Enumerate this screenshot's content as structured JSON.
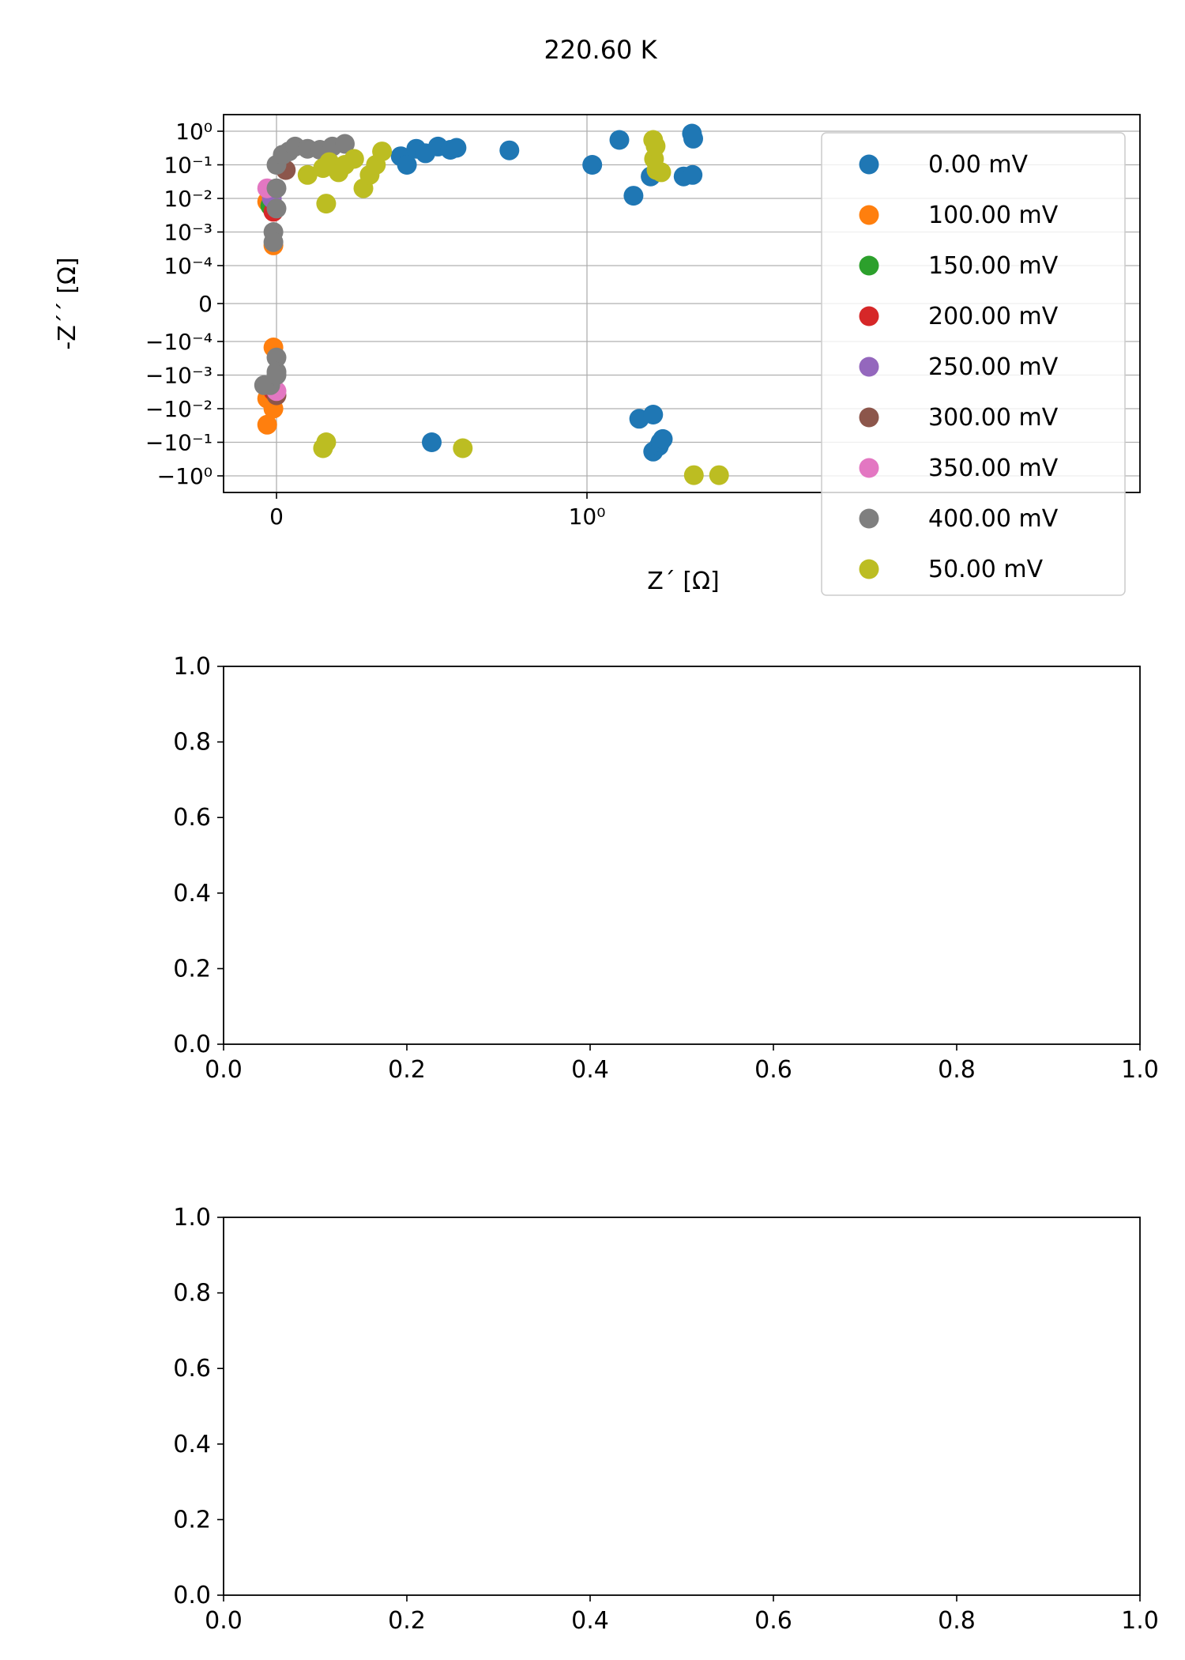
{
  "figure": {
    "suptitle": "220.60 K"
  },
  "chart_data": [
    {
      "type": "scatter",
      "xlabel": "Z´ [Ω]",
      "ylabel": "-Z´´ [Ω]",
      "x_scale": "symlog",
      "y_scale": "symlog",
      "grid": true,
      "legend_position": "right",
      "x_ticks": [
        {
          "value": 0,
          "label": "0"
        },
        {
          "value": 1,
          "label": "10⁰"
        }
      ],
      "y_ticks": [
        {
          "value": 1,
          "label": "10⁰"
        },
        {
          "value": 0.1,
          "label": "10⁻¹"
        },
        {
          "value": 0.01,
          "label": "10⁻²"
        },
        {
          "value": 0.001,
          "label": "10⁻³"
        },
        {
          "value": 0.0001,
          "label": "10⁻⁴"
        },
        {
          "value": 0,
          "label": "0"
        },
        {
          "value": -0.0001,
          "label": "−10⁻⁴"
        },
        {
          "value": -0.001,
          "label": "−10⁻³"
        },
        {
          "value": -0.01,
          "label": "−10⁻²"
        },
        {
          "value": -0.1,
          "label": "−10⁻¹"
        },
        {
          "value": -1,
          "label": "−10⁰"
        }
      ],
      "series": [
        {
          "name": "0.00 mV",
          "color": "#1f77b4",
          "points": [
            [
              0.4,
              0.18
            ],
            [
              0.42,
              0.1
            ],
            [
              0.45,
              0.3
            ],
            [
              0.48,
              0.22
            ],
            [
              0.52,
              0.35
            ],
            [
              0.56,
              0.28
            ],
            [
              0.58,
              0.32
            ],
            [
              0.75,
              0.27
            ],
            [
              1.04,
              0.1
            ],
            [
              1.27,
              0.55
            ],
            [
              1.41,
              0.012
            ],
            [
              1.6,
              0.045
            ],
            [
              2.04,
              0.045
            ],
            [
              2.17,
              0.85
            ],
            [
              2.19,
              0.6
            ],
            [
              2.18,
              0.05
            ],
            [
              0.5,
              -0.1
            ],
            [
              1.47,
              -0.02
            ],
            [
              1.63,
              -0.015
            ],
            [
              1.63,
              -0.19
            ],
            [
              1.7,
              -0.13
            ],
            [
              1.72,
              -0.1
            ],
            [
              1.75,
              -0.08
            ]
          ]
        },
        {
          "name": "100.00 mV",
          "color": "#ff7f0e",
          "points": [
            [
              -0.03,
              0.008
            ],
            [
              -0.01,
              0.0004
            ],
            [
              -0.01,
              -0.00015
            ],
            [
              -0.03,
              -0.005
            ],
            [
              -0.03,
              -0.03
            ],
            [
              -0.01,
              -0.01
            ],
            [
              -0.02,
              -0.002
            ]
          ]
        },
        {
          "name": "150.00 mV",
          "color": "#2ca02c",
          "points": [
            [
              -0.02,
              0.006
            ],
            [
              -0.02,
              -0.002
            ]
          ]
        },
        {
          "name": "200.00 mV",
          "color": "#d62728",
          "points": [
            [
              -0.01,
              0.004
            ],
            [
              -0.01,
              -0.003
            ]
          ]
        },
        {
          "name": "250.00 mV",
          "color": "#9467bd",
          "points": [
            [
              -0.015,
              0.01
            ],
            [
              -0.015,
              -0.002
            ]
          ]
        },
        {
          "name": "300.00 mV",
          "color": "#8c564b",
          "points": [
            [
              0.03,
              0.07
            ],
            [
              0.0,
              -0.004
            ]
          ]
        },
        {
          "name": "350.00 mV",
          "color": "#e377c2",
          "points": [
            [
              -0.03,
              0.02
            ],
            [
              0.0,
              -0.003
            ]
          ]
        },
        {
          "name": "400.00 mV",
          "color": "#7f7f7f",
          "points": [
            [
              0.0,
              0.1
            ],
            [
              0.02,
              0.2
            ],
            [
              0.04,
              0.25
            ],
            [
              0.06,
              0.35
            ],
            [
              0.1,
              0.3
            ],
            [
              0.14,
              0.28
            ],
            [
              0.18,
              0.35
            ],
            [
              0.22,
              0.42
            ],
            [
              0.0,
              0.02
            ],
            [
              0.0,
              0.005
            ],
            [
              -0.01,
              0.001
            ],
            [
              -0.01,
              0.0005
            ],
            [
              0.0,
              -0.0003
            ],
            [
              0.0,
              -0.0008
            ],
            [
              -0.02,
              -0.002
            ],
            [
              -0.04,
              -0.002
            ],
            [
              0.0,
              -0.001
            ]
          ]
        },
        {
          "name": "50.00 mV",
          "color": "#bcbd22",
          "points": [
            [
              0.1,
              0.05
            ],
            [
              0.15,
              0.08
            ],
            [
              0.17,
              0.12
            ],
            [
              0.2,
              0.06
            ],
            [
              0.22,
              0.1
            ],
            [
              0.25,
              0.15
            ],
            [
              0.28,
              0.02
            ],
            [
              0.3,
              0.05
            ],
            [
              0.32,
              0.1
            ],
            [
              0.34,
              0.25
            ],
            [
              0.16,
              0.007
            ],
            [
              1.63,
              0.55
            ],
            [
              1.64,
              0.15
            ],
            [
              1.66,
              0.36
            ],
            [
              1.67,
              0.07
            ],
            [
              1.73,
              0.06
            ],
            [
              0.15,
              -0.15
            ],
            [
              0.16,
              -0.1
            ],
            [
              0.6,
              -0.15
            ],
            [
              2.2,
              -0.95
            ],
            [
              2.65,
              -0.95
            ]
          ]
        }
      ]
    },
    {
      "type": "scatter",
      "xlim": [
        0,
        1
      ],
      "ylim": [
        0,
        1
      ],
      "x_ticks": [
        "0.0",
        "0.2",
        "0.4",
        "0.6",
        "0.8",
        "1.0"
      ],
      "y_ticks": [
        "0.0",
        "0.2",
        "0.4",
        "0.6",
        "0.8",
        "1.0"
      ],
      "series": []
    },
    {
      "type": "scatter",
      "xlim": [
        0,
        1
      ],
      "ylim": [
        0,
        1
      ],
      "x_ticks": [
        "0.0",
        "0.2",
        "0.4",
        "0.6",
        "0.8",
        "1.0"
      ],
      "y_ticks": [
        "0.0",
        "0.2",
        "0.4",
        "0.6",
        "0.8",
        "1.0"
      ],
      "series": []
    }
  ]
}
